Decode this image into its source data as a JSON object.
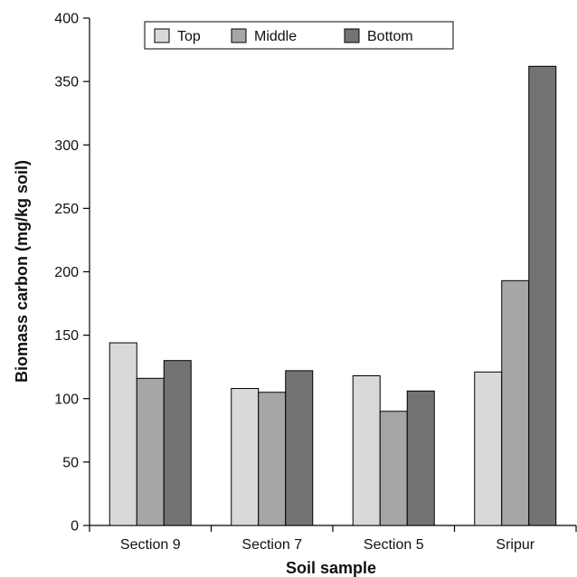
{
  "chart_data": {
    "type": "bar",
    "title": "",
    "xlabel": "Soil sample",
    "ylabel": "Biomass carbon (mg/kg soil)",
    "categories": [
      "Section 9",
      "Section 7",
      "Section 5",
      "Sripur"
    ],
    "series": [
      {
        "name": "Top",
        "color": "#d9d9d9",
        "values": [
          144,
          108,
          118,
          121
        ]
      },
      {
        "name": "Middle",
        "color": "#a6a6a6",
        "values": [
          116,
          105,
          90,
          193
        ]
      },
      {
        "name": "Bottom",
        "color": "#737373",
        "values": [
          130,
          122,
          106,
          362
        ]
      }
    ],
    "ylim": [
      0,
      400
    ],
    "yticks": [
      0,
      50,
      100,
      150,
      200,
      250,
      300,
      350,
      400
    ],
    "legend_position": "top",
    "grid": false
  }
}
